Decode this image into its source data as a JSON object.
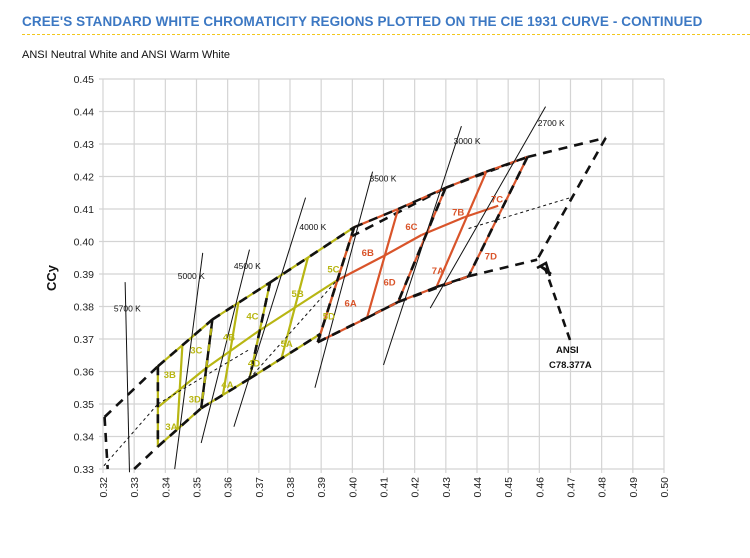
{
  "header": {
    "title": "CREE'S STANDARD WHITE CHROMATICITY REGIONS PLOTTED ON THE CIE 1931 CURVE - CONTINUED",
    "subtitle": "ANSI Neutral White and ANSI Warm White"
  },
  "colors": {
    "title": "#3c78c3",
    "rule": "#f2c71b",
    "neutral_bins": "#b8b613",
    "warm_bins": "#d9542a",
    "ansi": "#111111",
    "grid": "#d4d4d4"
  },
  "chart_data": {
    "type": "line",
    "title": "ANSI Neutral White and ANSI Warm White",
    "xlabel": "",
    "ylabel": "CCy",
    "xlim": [
      0.32,
      0.5
    ],
    "ylim": [
      0.33,
      0.45
    ],
    "grid": true,
    "x_ticks": [
      "0.32",
      "0.33",
      "0.34",
      "0.35",
      "0.36",
      "0.37",
      "0.38",
      "0.39",
      "0.40",
      "0.41",
      "0.42",
      "0.43",
      "0.44",
      "0.45",
      "0.46",
      "0.47",
      "0.48",
      "0.49",
      "0.50"
    ],
    "y_ticks": [
      "0.33",
      "0.34",
      "0.35",
      "0.36",
      "0.37",
      "0.38",
      "0.39",
      "0.40",
      "0.41",
      "0.42",
      "0.43",
      "0.44",
      "0.45"
    ],
    "isotherms": [
      {
        "label": "5700 K",
        "points": [
          [
            0.3271,
            0.3875
          ],
          [
            0.3285,
            0.329
          ]
        ],
        "label_at": [
          0.3235,
          0.3785
        ]
      },
      {
        "label": "5000 K",
        "points": [
          [
            0.352,
            0.3965
          ],
          [
            0.343,
            0.33
          ]
        ],
        "label_at": [
          0.344,
          0.3885
        ]
      },
      {
        "label": "4500 K",
        "points": [
          [
            0.367,
            0.3975
          ],
          [
            0.3515,
            0.338
          ]
        ],
        "label_at": [
          0.362,
          0.3915
        ]
      },
      {
        "label": "4000 K",
        "points": [
          [
            0.385,
            0.4135
          ],
          [
            0.362,
            0.343
          ]
        ],
        "label_at": [
          0.383,
          0.4035
        ]
      },
      {
        "label": "3500 K",
        "points": [
          [
            0.4065,
            0.4215
          ],
          [
            0.388,
            0.355
          ]
        ],
        "label_at": [
          0.4055,
          0.4185
        ]
      },
      {
        "label": "3000 K",
        "points": [
          [
            0.435,
            0.4355
          ],
          [
            0.41,
            0.362
          ]
        ],
        "label_at": [
          0.4325,
          0.43
        ]
      },
      {
        "label": "2700 K",
        "points": [
          [
            0.462,
            0.4415
          ],
          [
            0.425,
            0.3795
          ]
        ],
        "label_at": [
          0.4595,
          0.4355
        ]
      }
    ],
    "ansi_quadrangles": [
      {
        "name": "5700 K",
        "points": [
          [
            0.3205,
            0.3355
          ],
          [
            0.3207,
            0.33
          ],
          [
            0.3376,
            0.3616
          ],
          [
            0.3376,
            0.3616
          ]
        ]
      },
      {
        "name": "ANSI outline",
        "points": [
          [
            0.3205,
            0.346
          ],
          [
            0.3378,
            0.362
          ],
          [
            0.338,
            0.338
          ],
          [
            0.3215,
            0.33
          ]
        ]
      }
    ],
    "series": [
      {
        "name": "ANSI 5000K",
        "color": "#111111",
        "points": [
          [
            0.3376,
            0.3616
          ],
          [
            0.3551,
            0.376
          ],
          [
            0.3548,
            0.3736
          ],
          [
            0.3515,
            0.3487
          ],
          [
            0.3376,
            0.3369
          ]
        ]
      },
      {
        "name": "ANSI 4500K",
        "color": "#111111",
        "points": [
          [
            0.3548,
            0.3736
          ],
          [
            0.3736,
            0.3874
          ],
          [
            0.367,
            0.3578
          ],
          [
            0.3515,
            0.3487
          ]
        ]
      },
      {
        "name": "ANSI 4000K",
        "color": "#111111",
        "points": [
          [
            0.3736,
            0.3874
          ],
          [
            0.4006,
            0.4044
          ],
          [
            0.3898,
            0.3716
          ],
          [
            0.367,
            0.3578
          ]
        ]
      },
      {
        "name": "ANSI 3500K",
        "color": "#111111",
        "points": [
          [
            0.3996,
            0.4015
          ],
          [
            0.4299,
            0.4165
          ],
          [
            0.4147,
            0.3814
          ],
          [
            0.3889,
            0.369
          ]
        ]
      },
      {
        "name": "ANSI 3000K",
        "color": "#111111",
        "points": [
          [
            0.4299,
            0.4165
          ],
          [
            0.4562,
            0.426
          ],
          [
            0.4373,
            0.3893
          ],
          [
            0.4147,
            0.3814
          ]
        ]
      },
      {
        "name": "ANSI 2700K",
        "color": "#111111",
        "points": [
          [
            0.4562,
            0.426
          ],
          [
            0.4813,
            0.4319
          ],
          [
            0.4593,
            0.3944
          ],
          [
            0.4373,
            0.3893
          ]
        ]
      }
    ],
    "bins": [
      {
        "label": "3A",
        "group": "neutral",
        "label_at": [
          0.34,
          0.342
        ]
      },
      {
        "label": "3B",
        "group": "neutral",
        "label_at": [
          0.3395,
          0.358
        ]
      },
      {
        "label": "3C",
        "group": "neutral",
        "label_at": [
          0.348,
          0.3655
        ]
      },
      {
        "label": "3D",
        "group": "neutral",
        "label_at": [
          0.3475,
          0.3505
        ]
      },
      {
        "label": "4A",
        "group": "neutral",
        "label_at": [
          0.358,
          0.355
        ]
      },
      {
        "label": "4B",
        "group": "neutral",
        "label_at": [
          0.3585,
          0.3695
        ]
      },
      {
        "label": "4C",
        "group": "neutral",
        "label_at": [
          0.366,
          0.376
        ]
      },
      {
        "label": "4D",
        "group": "neutral",
        "label_at": [
          0.3665,
          0.3615
        ]
      },
      {
        "label": "5A",
        "group": "neutral",
        "label_at": [
          0.377,
          0.3675
        ]
      },
      {
        "label": "5B",
        "group": "neutral",
        "label_at": [
          0.3805,
          0.383
        ]
      },
      {
        "label": "5C",
        "group": "neutral",
        "label_at": [
          0.392,
          0.3905
        ]
      },
      {
        "label": "5D",
        "group": "neutral",
        "label_at": [
          0.3905,
          0.376
        ]
      },
      {
        "label": "6A",
        "group": "warm",
        "label_at": [
          0.3975,
          0.38
        ]
      },
      {
        "label": "6B",
        "group": "warm",
        "label_at": [
          0.403,
          0.3955
        ]
      },
      {
        "label": "6C",
        "group": "warm",
        "label_at": [
          0.417,
          0.4035
        ]
      },
      {
        "label": "6D",
        "group": "warm",
        "label_at": [
          0.41,
          0.3865
        ]
      },
      {
        "label": "7A",
        "group": "warm",
        "label_at": [
          0.4255,
          0.39
        ]
      },
      {
        "label": "7B",
        "group": "warm",
        "label_at": [
          0.432,
          0.408
        ]
      },
      {
        "label": "7C",
        "group": "warm",
        "label_at": [
          0.4445,
          0.412
        ]
      },
      {
        "label": "7D",
        "group": "warm",
        "label_at": [
          0.4425,
          0.3945
        ]
      }
    ],
    "annotations": [
      {
        "text_line1": "ANSI",
        "text_line2": "C78.377A"
      }
    ]
  }
}
